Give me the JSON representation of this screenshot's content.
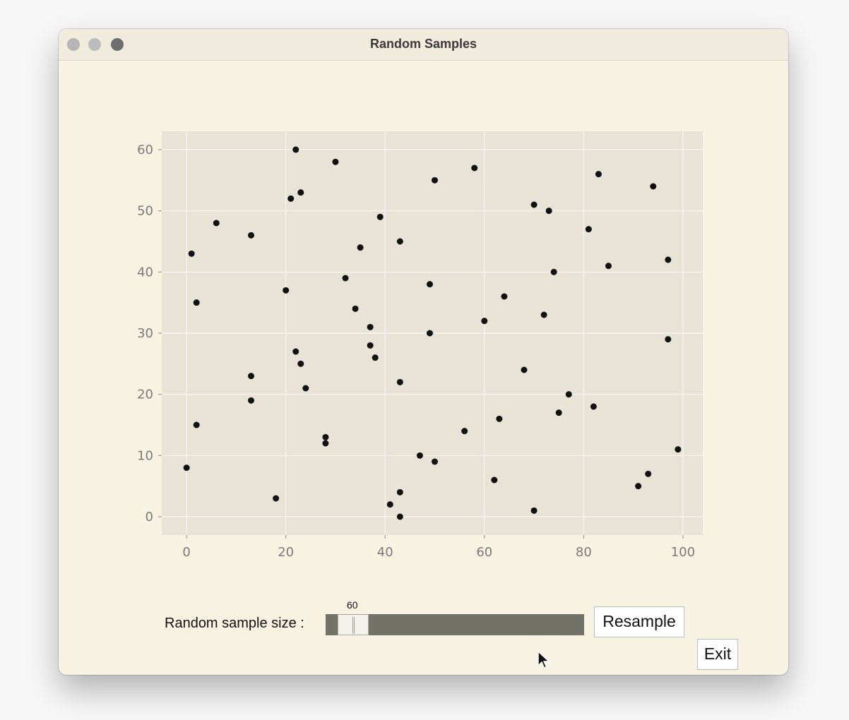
{
  "window": {
    "title": "Random Samples"
  },
  "controls": {
    "sample_size_label": "Random sample size :",
    "slider_value": "60",
    "slider_min": 0,
    "slider_max": 1000,
    "resample_label": "Resample",
    "exit_label": "Exit"
  },
  "colors": {
    "window_bg": "#f8f2e3",
    "plot_bg": "#e8e3d6",
    "point": "#111111",
    "slider_track": "#727268"
  },
  "chart_data": {
    "type": "scatter",
    "title": "",
    "xlabel": "",
    "ylabel": "",
    "xlim": [
      -5,
      104
    ],
    "ylim": [
      -3,
      63
    ],
    "grid": true,
    "xticks": [
      0,
      20,
      40,
      60,
      80,
      100
    ],
    "yticks": [
      0,
      10,
      20,
      30,
      40,
      50,
      60
    ],
    "points": [
      [
        0,
        8
      ],
      [
        1,
        43
      ],
      [
        2,
        35
      ],
      [
        2,
        15
      ],
      [
        6,
        48
      ],
      [
        13,
        46
      ],
      [
        13,
        23
      ],
      [
        13,
        19
      ],
      [
        18,
        3
      ],
      [
        20,
        37
      ],
      [
        21,
        52
      ],
      [
        22,
        60
      ],
      [
        22,
        27
      ],
      [
        23,
        53
      ],
      [
        23,
        25
      ],
      [
        24,
        21
      ],
      [
        28,
        13
      ],
      [
        28,
        12
      ],
      [
        30,
        58
      ],
      [
        32,
        39
      ],
      [
        34,
        34
      ],
      [
        35,
        44
      ],
      [
        37,
        31
      ],
      [
        37,
        28
      ],
      [
        38,
        26
      ],
      [
        39,
        49
      ],
      [
        41,
        2
      ],
      [
        43,
        45
      ],
      [
        43,
        22
      ],
      [
        43,
        4
      ],
      [
        43,
        0
      ],
      [
        47,
        10
      ],
      [
        49,
        38
      ],
      [
        49,
        30
      ],
      [
        50,
        55
      ],
      [
        50,
        9
      ],
      [
        56,
        14
      ],
      [
        58,
        57
      ],
      [
        60,
        32
      ],
      [
        62,
        6
      ],
      [
        63,
        16
      ],
      [
        64,
        36
      ],
      [
        68,
        24
      ],
      [
        70,
        51
      ],
      [
        70,
        1
      ],
      [
        72,
        33
      ],
      [
        73,
        50
      ],
      [
        74,
        40
      ],
      [
        75,
        17
      ],
      [
        77,
        20
      ],
      [
        81,
        47
      ],
      [
        82,
        18
      ],
      [
        83,
        56
      ],
      [
        85,
        41
      ],
      [
        91,
        5
      ],
      [
        93,
        7
      ],
      [
        94,
        54
      ],
      [
        97,
        42
      ],
      [
        97,
        29
      ],
      [
        99,
        11
      ]
    ]
  }
}
